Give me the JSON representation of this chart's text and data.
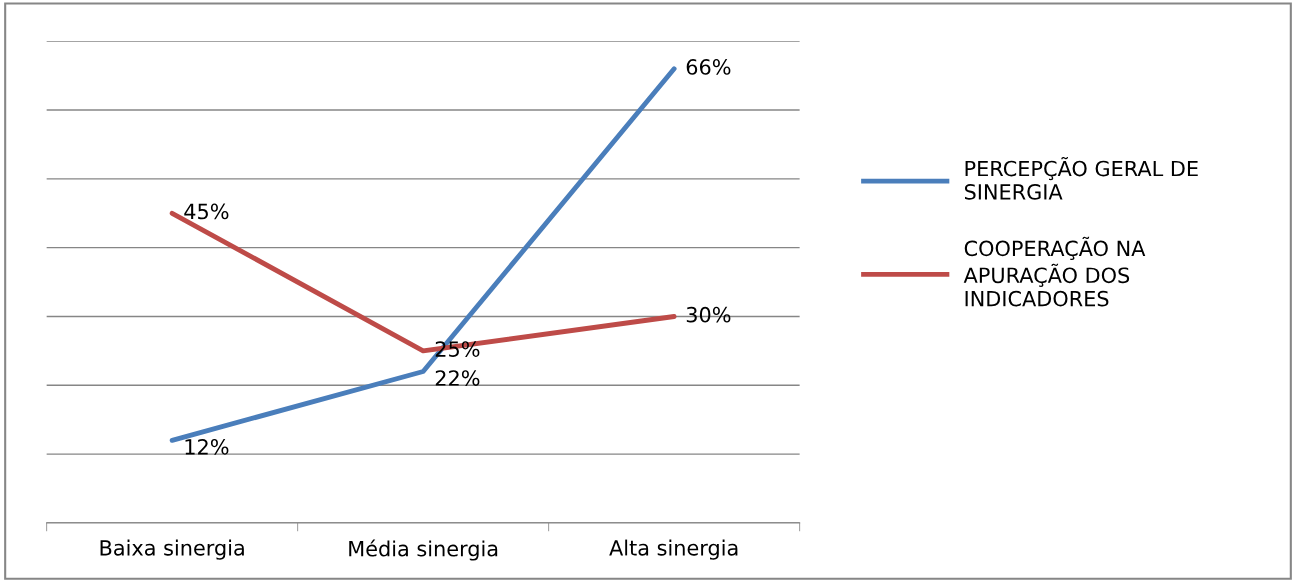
{
  "chart_data": {
    "type": "line",
    "categories": [
      "Baixa sinergia",
      "Média sinergia",
      "Alta sinergia"
    ],
    "series": [
      {
        "name": "PERCEPÇÃO GERAL DE SINERGIA",
        "color": "#4a7ebb",
        "values": [
          12,
          22,
          66
        ],
        "value_labels": [
          "12%",
          "22%",
          "66%"
        ]
      },
      {
        "name": "COOPERAÇÃO NA APURAÇÃO DOS INDICADORES",
        "color": "#be4b48",
        "values": [
          45,
          25,
          30
        ],
        "value_labels": [
          "45%",
          "25%",
          "30%"
        ]
      }
    ],
    "ylim": [
      0,
      70
    ],
    "yticks": [
      {
        "value": 0,
        "label": null
      },
      {
        "value": 10,
        "label": null
      },
      {
        "value": 20,
        "label": null
      },
      {
        "value": 30,
        "label": null
      },
      {
        "value": 40,
        "label": null
      },
      {
        "value": 50,
        "label": null
      },
      {
        "value": 60,
        "label": null
      },
      {
        "value": 70,
        "label": null
      }
    ],
    "tick_labels": "x",
    "grid": "y",
    "legend": "right",
    "marker": "none",
    "line_style": "solid"
  }
}
